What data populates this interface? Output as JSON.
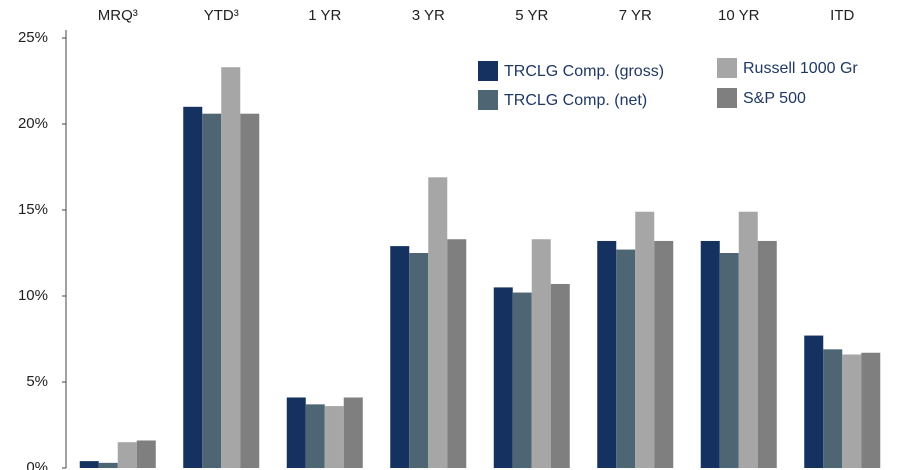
{
  "chart_data": {
    "type": "bar",
    "categories": [
      "MRQ³",
      "YTD³",
      "1 YR",
      "3 YR",
      "5 YR",
      "7 YR",
      "10 YR",
      "ITD"
    ],
    "series": [
      {
        "name": "TRCLG Comp. (gross)",
        "color": "#14315f",
        "values": [
          0.4,
          21.0,
          4.1,
          12.9,
          10.5,
          13.2,
          13.2,
          7.7
        ]
      },
      {
        "name": "TRCLG Comp. (net)",
        "color": "#4e6573",
        "values": [
          0.3,
          20.6,
          3.7,
          12.5,
          10.2,
          12.7,
          12.5,
          6.9
        ]
      },
      {
        "name": "Russell 1000 Gr",
        "color": "#a6a6a6",
        "values": [
          1.5,
          23.3,
          3.6,
          16.9,
          13.3,
          14.9,
          14.9,
          6.6
        ]
      },
      {
        "name": "S&P 500",
        "color": "#7f7f7f",
        "values": [
          1.6,
          20.6,
          4.1,
          13.3,
          10.7,
          13.2,
          13.2,
          6.7
        ]
      }
    ],
    "ylim": [
      0,
      25
    ],
    "yticks": [
      {
        "value": 0,
        "label": "0%"
      },
      {
        "value": 5,
        "label": "5%"
      },
      {
        "value": 10,
        "label": "10%"
      },
      {
        "value": 15,
        "label": "15%"
      },
      {
        "value": 20,
        "label": "20%"
      },
      {
        "value": 25,
        "label": "25%"
      }
    ],
    "legend": "top-right"
  }
}
